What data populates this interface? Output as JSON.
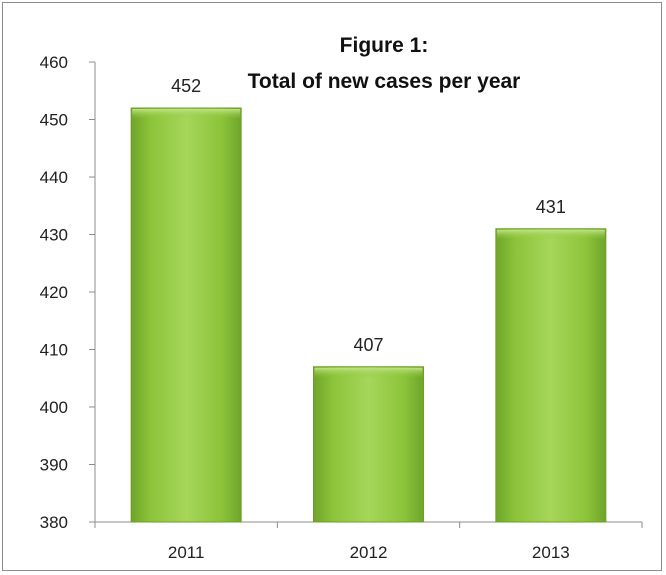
{
  "chart_data": {
    "type": "bar",
    "title": "Figure 1:",
    "subtitle": "Total of new cases per year",
    "xlabel": "",
    "ylabel": "",
    "categories": [
      "2011",
      "2012",
      "2013"
    ],
    "values": [
      452,
      407,
      431
    ],
    "data_labels": [
      "452",
      "407",
      "431"
    ],
    "ylim": [
      380,
      460
    ],
    "yticks": [
      "380",
      "390",
      "400",
      "410",
      "420",
      "430",
      "440",
      "450",
      "460"
    ],
    "grid": false,
    "legend": "none",
    "bar_color": "#8cc43a",
    "bar_edge_color": "#6e9e26"
  }
}
